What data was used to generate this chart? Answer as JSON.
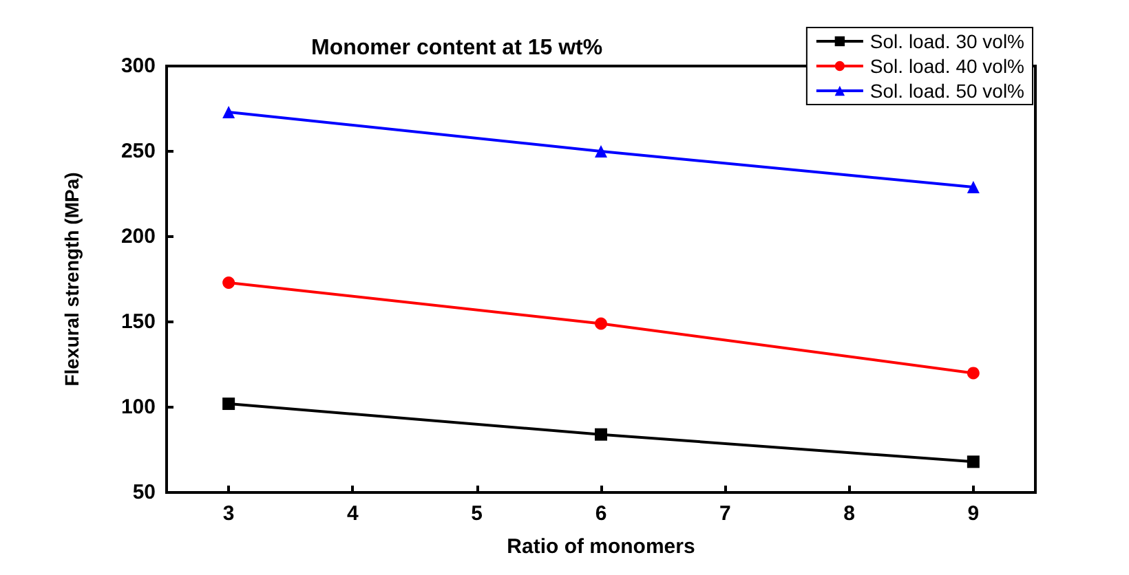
{
  "chart_data": {
    "type": "line",
    "title": "Monomer content at 15 wt%",
    "xlabel": "Ratio of monomers",
    "ylabel": "Flexural strength (MPa)",
    "x": [
      3,
      6,
      9
    ],
    "series": [
      {
        "name": "Sol. load. 30 vol%",
        "color": "#000000",
        "marker": "square",
        "values": [
          102,
          84,
          68
        ]
      },
      {
        "name": "Sol. load. 40 vol%",
        "color": "#ff0000",
        "marker": "circle",
        "values": [
          173,
          149,
          120
        ]
      },
      {
        "name": "Sol. load. 50 vol%",
        "color": "#0000ff",
        "marker": "triangle",
        "values": [
          273,
          250,
          229
        ]
      }
    ],
    "xlim": [
      2.5,
      9.5
    ],
    "xticks": [
      3,
      4,
      5,
      6,
      7,
      8,
      9
    ],
    "ylim": [
      50,
      300
    ],
    "yticks": [
      50,
      100,
      150,
      200,
      250,
      300
    ],
    "grid": false,
    "legend": "top right",
    "line_style": "solid"
  }
}
